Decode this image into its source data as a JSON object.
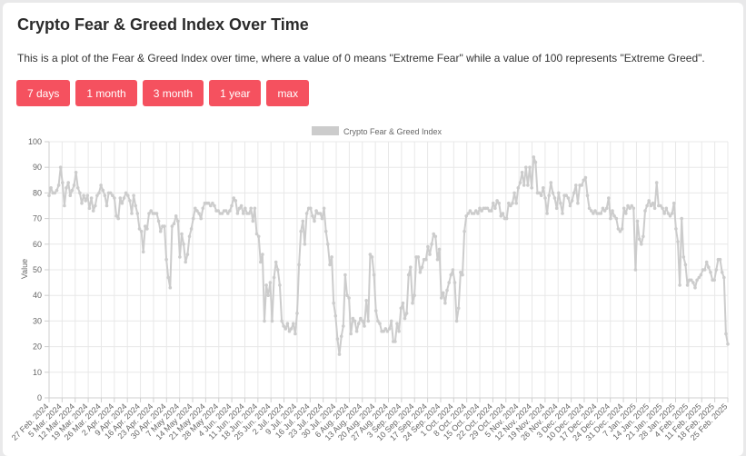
{
  "page": {
    "title": "Crypto Fear & Greed Index Over Time",
    "description": "This is a plot of the Fear & Greed Index over time, where a value of 0 means \"Extreme Fear\" while a value of 100 represents \"Extreme Greed\".",
    "buttons": [
      "7 days",
      "1 month",
      "3 month",
      "1 year",
      "max"
    ]
  },
  "colors": {
    "button": "#f5515f",
    "line": "#cccccc",
    "grid": "#e8e8e8"
  },
  "chart_data": {
    "type": "line",
    "title": "",
    "xlabel": "",
    "ylabel": "Value",
    "ylim": [
      0,
      100
    ],
    "yticks": [
      0,
      10,
      20,
      30,
      40,
      50,
      60,
      70,
      80,
      90,
      100
    ],
    "legend": "top",
    "grid": true,
    "x_start": "27 Feb. 2024",
    "x_end": "26 Feb. 2025",
    "xtick_labels": [
      "27 Feb. 2024",
      "5 Mar. 2024",
      "12 Mar. 2024",
      "19 Mar. 2024",
      "26 Mar. 2024",
      "2 Apr. 2024",
      "9 Apr. 2024",
      "16 Apr. 2024",
      "23 Apr. 2024",
      "30 Apr. 2024",
      "7 May 2024",
      "14 May 2024",
      "21 May 2024",
      "28 May 2024",
      "4 Jun. 2024",
      "11 Jun. 2024",
      "18 Jun. 2024",
      "25 Jun. 2024",
      "2 Jul. 2024",
      "9 Jul. 2024",
      "16 Jul. 2024",
      "23 Jul. 2024",
      "30 Jul. 2024",
      "6 Aug. 2024",
      "13 Aug. 2024",
      "20 Aug. 2024",
      "27 Aug. 2024",
      "3 Sep. 2024",
      "10 Sep. 2024",
      "17 Sep. 2024",
      "24 Sep. 2024",
      "1 Oct. 2024",
      "8 Oct. 2024",
      "15 Oct. 2024",
      "22 Oct. 2024",
      "29 Oct. 2024",
      "5 Nov. 2024",
      "12 Nov. 2024",
      "19 Nov. 2024",
      "26 Nov. 2024",
      "3 Dec. 2024",
      "10 Dec. 2024",
      "17 Dec. 2024",
      "24 Dec. 2024",
      "31 Dec. 2024",
      "7 Jan. 2025",
      "14 Jan. 2025",
      "21 Jan. 2025",
      "28 Jan. 2025",
      "4 Feb. 2025",
      "11 Feb. 2025",
      "18 Feb. 2025",
      "25 Feb. 2025"
    ],
    "series": [
      {
        "name": "Crypto Fear & Greed Index",
        "values": [
          79,
          82,
          80,
          80,
          81,
          83,
          90,
          84,
          75,
          82,
          84,
          79,
          81,
          83,
          88,
          82,
          80,
          76,
          79,
          77,
          79,
          74,
          78,
          73,
          75,
          79,
          80,
          83,
          81,
          79,
          75,
          80,
          80,
          79,
          78,
          71,
          70,
          78,
          76,
          78,
          80,
          79,
          77,
          72,
          79,
          75,
          72,
          66,
          65,
          57,
          67,
          66,
          72,
          73,
          72,
          72,
          72,
          69,
          65,
          67,
          67,
          54,
          47,
          43,
          67,
          68,
          71,
          69,
          55,
          64,
          60,
          53,
          56,
          63,
          66,
          70,
          74,
          73,
          72,
          70,
          74,
          76,
          76,
          76,
          75,
          76,
          75,
          73,
          73,
          72,
          72,
          73,
          73,
          72,
          73,
          75,
          78,
          77,
          72,
          74,
          75,
          72,
          74,
          72,
          72,
          74,
          69,
          74,
          64,
          63,
          53,
          56,
          30,
          44,
          40,
          45,
          30,
          47,
          53,
          50,
          44,
          30,
          28,
          27,
          29,
          26,
          27,
          29,
          25,
          33,
          52,
          65,
          69,
          60,
          72,
          74,
          74,
          71,
          69,
          73,
          72,
          72,
          70,
          74,
          65,
          60,
          52,
          55,
          37,
          32,
          23,
          17,
          24,
          28,
          48,
          40,
          39,
          25,
          31,
          30,
          26,
          29,
          31,
          30,
          28,
          38,
          30,
          56,
          55,
          48,
          34,
          30,
          29,
          26,
          26,
          27,
          26,
          27,
          30,
          22,
          22,
          29,
          26,
          35,
          37,
          31,
          33,
          48,
          51,
          37,
          40,
          55,
          55,
          49,
          51,
          54,
          54,
          59,
          56,
          60,
          64,
          63,
          54,
          58,
          39,
          41,
          37,
          42,
          45,
          48,
          50,
          45,
          30,
          35,
          49,
          48,
          65,
          71,
          72,
          73,
          72,
          72,
          73,
          72,
          74,
          73,
          74,
          74,
          74,
          73,
          73,
          76,
          74,
          77,
          76,
          71,
          72,
          70,
          70,
          76,
          75,
          76,
          80,
          76,
          82,
          84,
          88,
          83,
          90,
          83,
          90,
          82,
          94,
          92,
          80,
          80,
          79,
          82,
          78,
          72,
          79,
          84,
          80,
          78,
          74,
          80,
          76,
          72,
          79,
          79,
          78,
          75,
          77,
          80,
          83,
          76,
          83,
          83,
          85,
          86,
          79,
          74,
          73,
          72,
          73,
          72,
          72,
          72,
          74,
          73,
          74,
          78,
          70,
          73,
          71,
          70,
          66,
          65,
          66,
          74,
          72,
          75,
          74,
          75,
          74,
          50,
          69,
          62,
          60,
          63,
          73,
          75,
          77,
          75,
          76,
          74,
          84,
          75,
          75,
          74,
          72,
          74,
          72,
          71,
          72,
          76,
          66,
          61,
          44,
          70,
          55,
          52,
          44,
          46,
          46,
          45,
          43,
          46,
          47,
          48,
          50,
          50,
          53,
          51,
          49,
          46,
          46,
          50,
          54,
          54,
          49,
          47,
          25,
          21
        ]
      }
    ]
  }
}
